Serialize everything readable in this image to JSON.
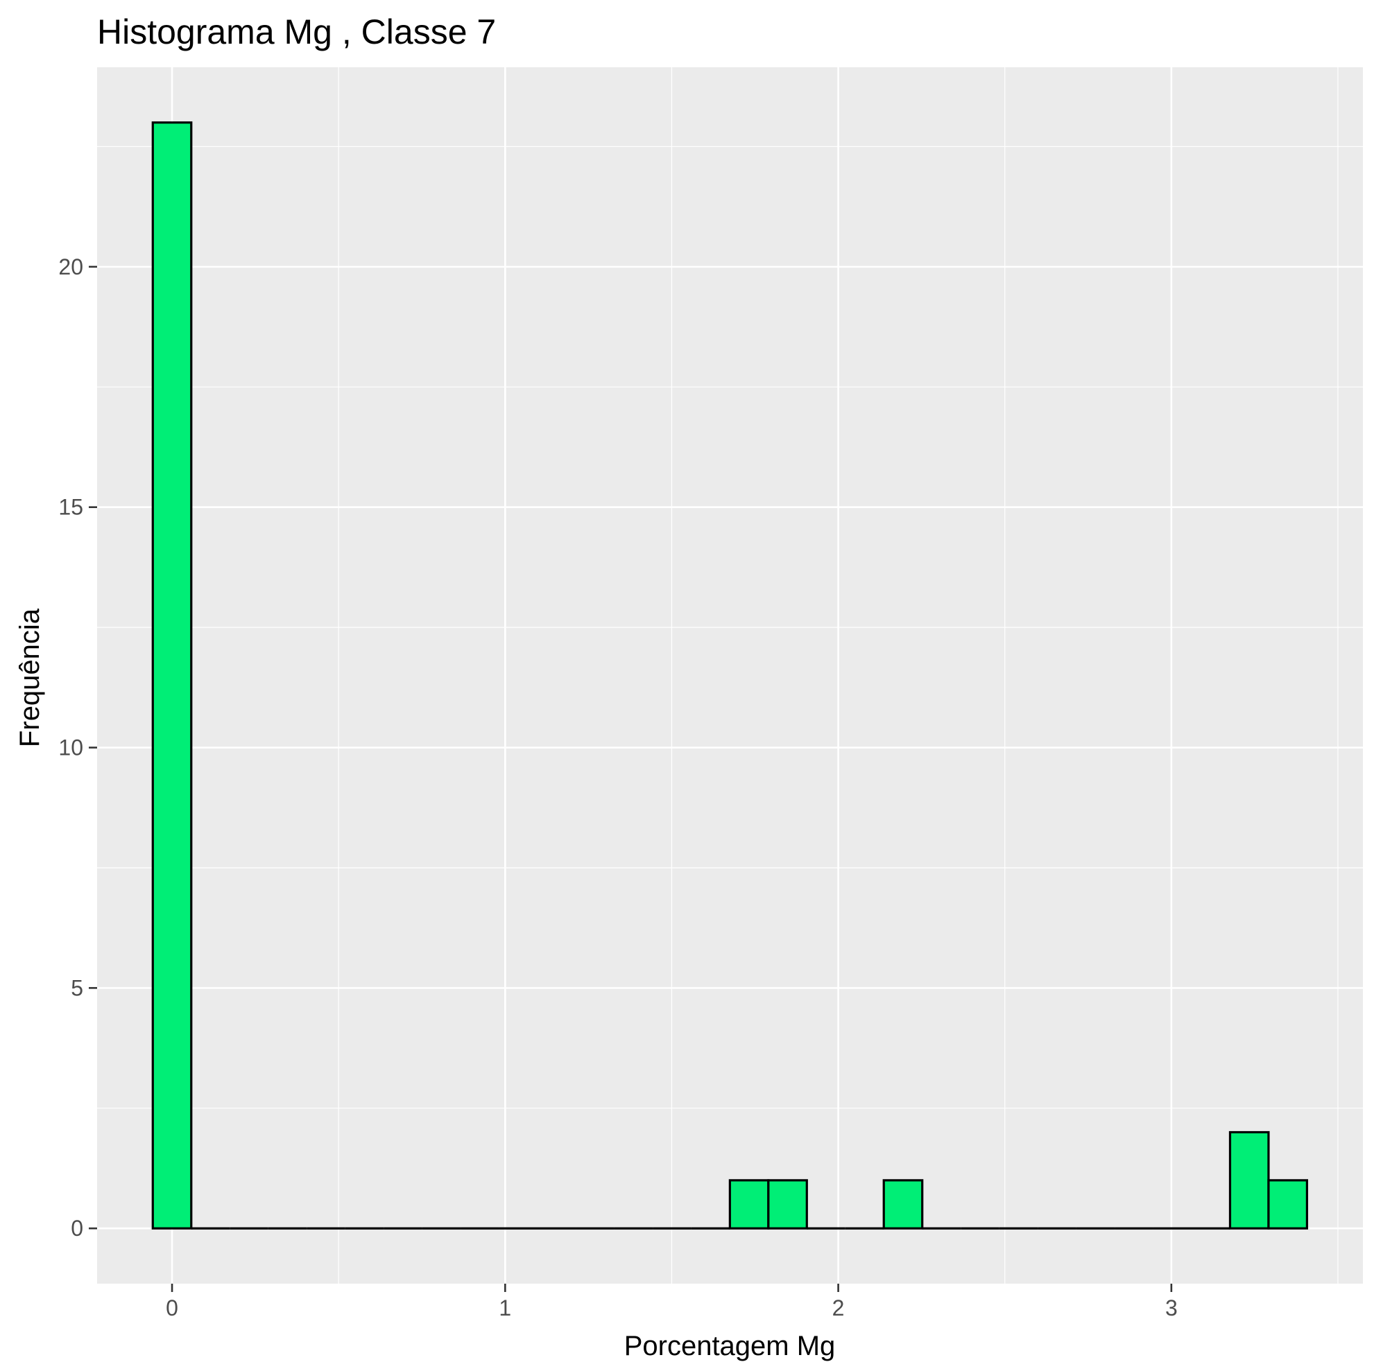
{
  "chart_data": {
    "type": "bar",
    "title": "Histograma  Mg , Classe  7",
    "xlabel": "Porcentagem Mg",
    "ylabel": "Frequência",
    "bin_width": 0.1155,
    "bin_start": -0.0578,
    "counts": [
      23,
      0,
      0,
      0,
      0,
      0,
      0,
      0,
      0,
      0,
      0,
      0,
      0,
      0,
      0,
      1,
      1,
      0,
      0,
      1,
      0,
      0,
      0,
      0,
      0,
      0,
      0,
      0,
      2,
      1
    ],
    "xlim": [
      -0.225,
      3.575
    ],
    "ylim": [
      -1.15,
      24.15
    ],
    "x_ticks": [
      "0",
      "1",
      "2",
      "3"
    ],
    "x_tick_values": [
      0,
      1,
      2,
      3
    ],
    "x_minor_ticks": [
      0.5,
      1.5,
      2.5,
      3.5
    ],
    "y_ticks": [
      "0",
      "5",
      "10",
      "15",
      "20"
    ],
    "y_tick_values": [
      0,
      5,
      10,
      15,
      20
    ],
    "y_minor_ticks": [
      2.5,
      7.5,
      12.5,
      17.5,
      22.5
    ],
    "grid": true,
    "legend": "none",
    "colors": {
      "bar_fill": "#00EE76",
      "bar_stroke": "#000000",
      "panel_bg": "#EBEBEB",
      "grid": "#FFFFFF",
      "tick": "#333333"
    }
  }
}
